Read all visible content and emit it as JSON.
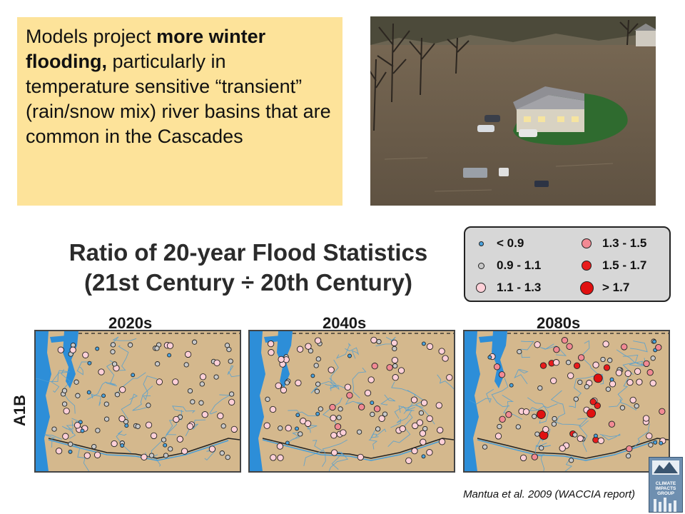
{
  "callout": {
    "parts": [
      {
        "text": "Models project ",
        "bold": false
      },
      {
        "text": "more winter flooding,",
        "bold": true
      },
      {
        "text": " particularly in temperature sensitive “transient” (rain/snow mix) river basins that are common in the Cascades",
        "bold": false
      }
    ]
  },
  "title": {
    "line1": "Ratio of 20-year Flood Statistics",
    "line2": "(21st Century ÷ 20th Century)"
  },
  "legend": {
    "items": [
      {
        "label": "< 0.9",
        "color": "#4aa3df",
        "size": "xs"
      },
      {
        "label": "0.9 - 1.1",
        "color": "#c8c8c8",
        "size": "s"
      },
      {
        "label": "1.1 - 1.3",
        "color": "#ffd0d8",
        "size": "m"
      },
      {
        "label": "1.3 - 1.5",
        "color": "#f28a94",
        "size": "m"
      },
      {
        "label": "1.5 - 1.7",
        "color": "#e81c1c",
        "size": "m"
      },
      {
        "label": "> 1.7",
        "color": "#e01010",
        "size": "l"
      }
    ]
  },
  "periods": [
    "2020s",
    "2040s",
    "2080s"
  ],
  "scenario": "A1B",
  "citation": "Mantua et al. 2009 (WACCIA report)",
  "logo": {
    "lines": [
      "CLIMATE",
      "IMPACTS",
      "GROUP"
    ]
  },
  "colors": {
    "land": "#d4b88d",
    "water": "#2d8ed8",
    "river": "#4a9ed6",
    "callout_bg": "#fde39a",
    "legend_bg": "#d7d7d7"
  }
}
